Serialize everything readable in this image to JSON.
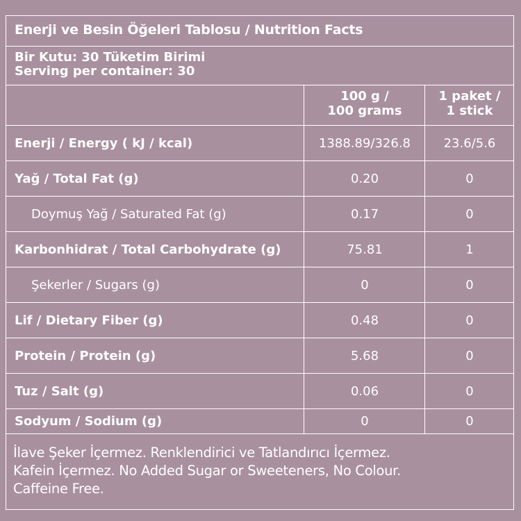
{
  "title": "Enerji ve Besin Öğeleri Tablosu / Nutrition Facts",
  "serving": {
    "line1": "Bir Kutu: 30 Tüketim Birimi",
    "line2": "Serving per container: 30"
  },
  "columns": {
    "col1_line1": "100 g /",
    "col1_line2": "100 grams",
    "col2_line1": "1 paket /",
    "col2_line2": "1 stick"
  },
  "rows": [
    {
      "label": "Enerji / Energy ( kJ / kcal)",
      "per100": "1388.89/326.8",
      "perStick": "23.6/5.6"
    },
    {
      "label": "Yağ / Total Fat (g)",
      "per100": "0.20",
      "perStick": "0"
    },
    {
      "label": "Doymuş Yağ / Saturated Fat (g)",
      "per100": "0.17",
      "perStick": "0"
    },
    {
      "label": "Karbonhidrat / Total Carbohydrate (g)",
      "per100": "75.81",
      "perStick": "1"
    },
    {
      "label": "Şekerler  / Sugars (g)",
      "per100": "0",
      "perStick": "0"
    },
    {
      "label": "Lif / Dietary Fiber (g)",
      "per100": "0.48",
      "perStick": "0"
    },
    {
      "label": "Protein / Protein (g)",
      "per100": "5.68",
      "perStick": "0"
    },
    {
      "label": "Tuz / Salt (g)",
      "per100": "0.06",
      "perStick": "0"
    },
    {
      "label": "Sodyum / Sodium (g)",
      "per100": "0",
      "perStick": "0"
    }
  ],
  "footer": {
    "line1": "İlave Şeker İçermez. Renklendirici ve Tatlandırıcı İçermez.",
    "line2": "Kafein İçermez. No Added Sugar or Sweeteners, No Colour.",
    "line3": "Caffeine Free."
  },
  "colors": {
    "background": "#a9909f",
    "text": "#ffffff",
    "border": "#ffffff"
  }
}
